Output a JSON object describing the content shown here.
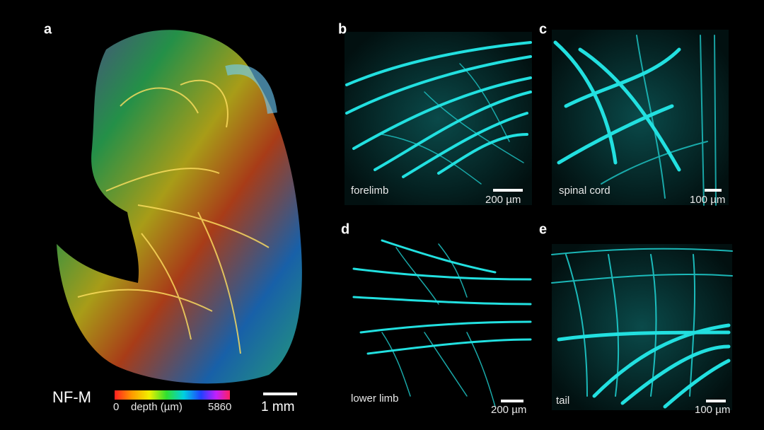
{
  "figure": {
    "panels": [
      {
        "letter": "a",
        "marker": "NF-M",
        "colorbar": {
          "min": "0",
          "label": "depth (µm)",
          "max": "5860"
        },
        "scale": "1 mm"
      },
      {
        "letter": "b",
        "caption": "forelimb",
        "scale": "200 µm"
      },
      {
        "letter": "c",
        "caption": "spinal cord",
        "scale": "100 µm"
      },
      {
        "letter": "d",
        "caption": "lower limb",
        "scale": "200 µm"
      },
      {
        "letter": "e",
        "caption": "tail",
        "scale": "100 µm"
      }
    ]
  }
}
